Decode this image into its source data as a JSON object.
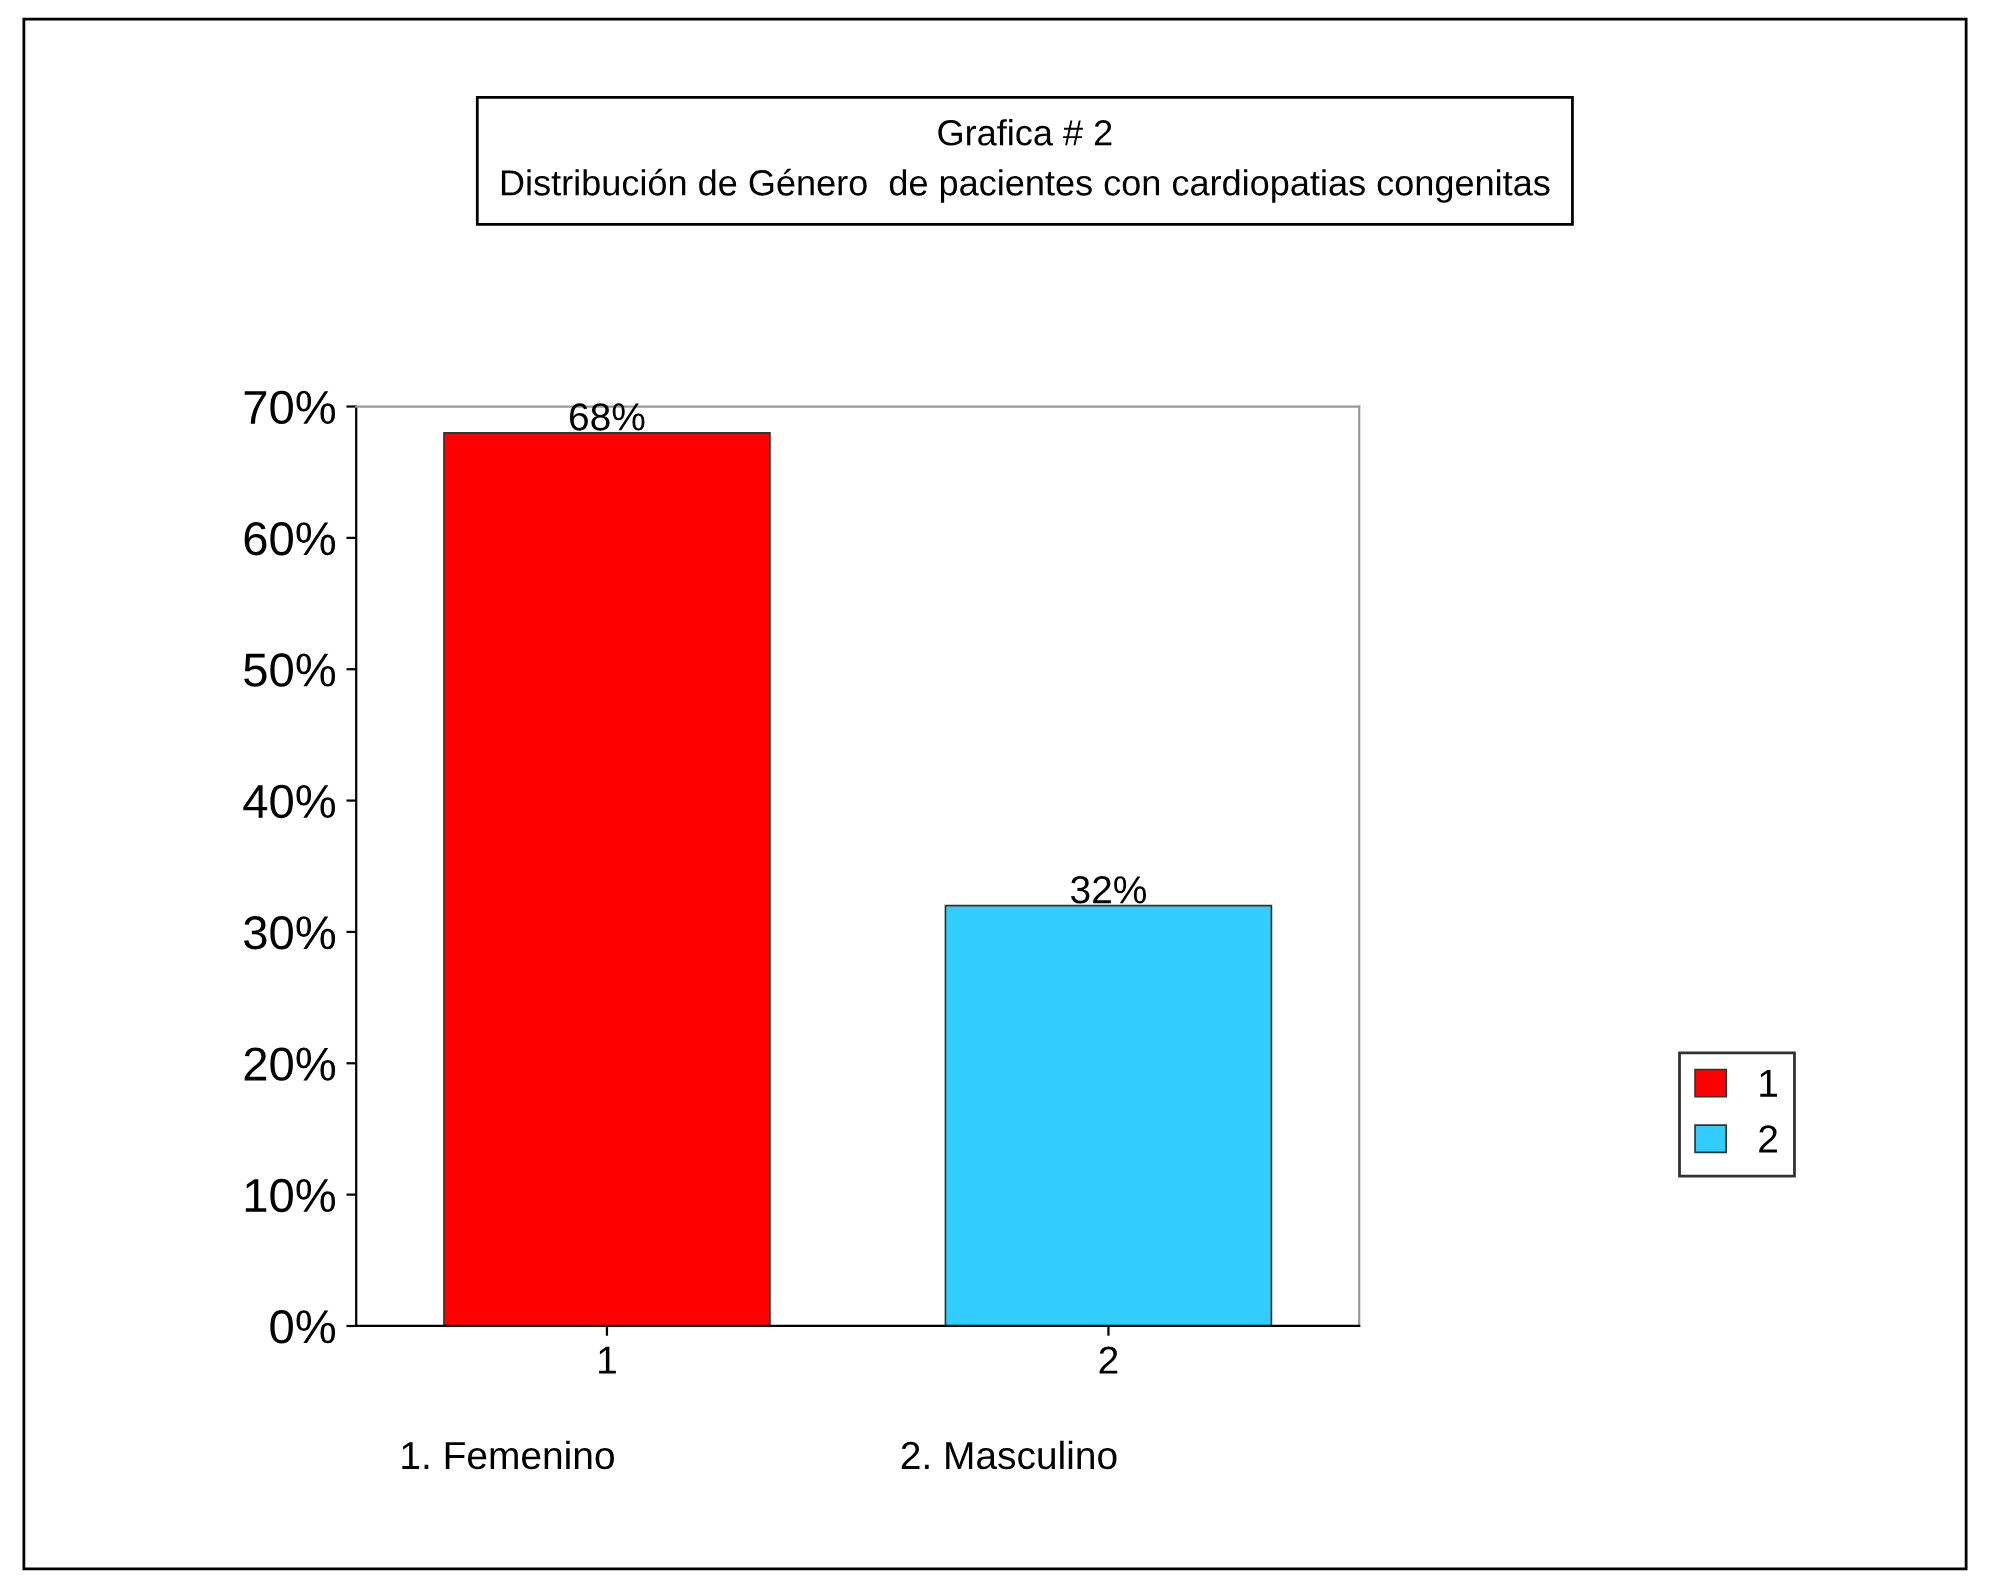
{
  "chart_data": {
    "type": "bar",
    "title": "Grafica # 2\nDistribución de Género  de pacientes con cardiopatias congenitas",
    "categories": [
      "1",
      "2"
    ],
    "series": [
      {
        "name": "1",
        "color": "#ff0000",
        "values": [
          68,
          null
        ],
        "value_labels": [
          "68%",
          null
        ]
      },
      {
        "name": "2",
        "color": "#33ccff",
        "values": [
          null,
          32
        ],
        "value_labels": [
          null,
          "32%"
        ]
      }
    ],
    "ylim": [
      0,
      70
    ],
    "yticks": [
      {
        "value": 0,
        "label": "0%"
      },
      {
        "value": 10,
        "label": "10%"
      },
      {
        "value": 20,
        "label": "20%"
      },
      {
        "value": 30,
        "label": "30%"
      },
      {
        "value": 40,
        "label": "40%"
      },
      {
        "value": 50,
        "label": "50%"
      },
      {
        "value": 60,
        "label": "60%"
      },
      {
        "value": 70,
        "label": "70%"
      }
    ],
    "annotations": [
      "1. Femenino",
      "2. Masculino"
    ],
    "legend": "right",
    "grid": false
  }
}
